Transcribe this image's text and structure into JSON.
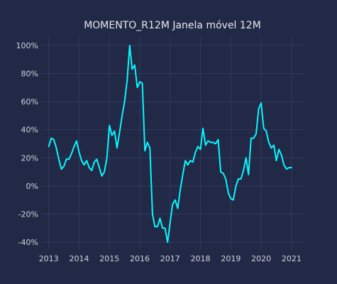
{
  "chart_data": {
    "type": "line",
    "title": "MOMENTO_R12M Janela móvel 12M",
    "xlabel": "",
    "ylabel": "",
    "x_range": [
      2012.75,
      2021.4
    ],
    "ylim": [
      -45,
      107
    ],
    "yticks": [
      -40,
      -20,
      0,
      20,
      40,
      60,
      80,
      100
    ],
    "ytick_labels": [
      "-40%",
      "-20%",
      "0%",
      "20%",
      "40%",
      "60%",
      "80%",
      "100%"
    ],
    "xticks": [
      2013,
      2014,
      2015,
      2016,
      2017,
      2018,
      2019,
      2020,
      2021
    ],
    "xtick_labels": [
      "2013",
      "2014",
      "2015",
      "2016",
      "2017",
      "2018",
      "2019",
      "2020",
      "2021"
    ],
    "grid": true,
    "line_color": "#08F7FE",
    "series": [
      {
        "x": [
          2013.0,
          2013.083,
          2013.167,
          2013.25,
          2013.333,
          2013.417,
          2013.5,
          2013.583,
          2013.667,
          2013.75,
          2013.833,
          2013.917,
          2014.0,
          2014.083,
          2014.167,
          2014.25,
          2014.333,
          2014.417,
          2014.5,
          2014.583,
          2014.667,
          2014.75,
          2014.833,
          2014.917,
          2015.0,
          2015.083,
          2015.167,
          2015.25,
          2015.333,
          2015.417,
          2015.5,
          2015.583,
          2015.667,
          2015.75,
          2015.833,
          2015.917,
          2016.0,
          2016.083,
          2016.167,
          2016.25,
          2016.333,
          2016.417,
          2016.5,
          2016.583,
          2016.667,
          2016.75,
          2016.833,
          2016.917,
          2017.0,
          2017.083,
          2017.167,
          2017.25,
          2017.333,
          2017.417,
          2017.5,
          2017.583,
          2017.667,
          2017.75,
          2017.833,
          2017.917,
          2018.0,
          2018.083,
          2018.167,
          2018.25,
          2018.333,
          2018.417,
          2018.5,
          2018.583,
          2018.667,
          2018.75,
          2018.833,
          2018.917,
          2019.0,
          2019.083,
          2019.167,
          2019.25,
          2019.333,
          2019.417,
          2019.5,
          2019.583,
          2019.667,
          2019.75,
          2019.833,
          2019.917,
          2020.0,
          2020.083,
          2020.167,
          2020.25,
          2020.333,
          2020.417,
          2020.5,
          2020.583,
          2020.667,
          2020.75,
          2020.833,
          2020.917,
          2021.0
        ],
        "y": [
          28,
          34,
          33,
          27,
          19,
          12,
          14,
          19,
          19,
          23,
          28,
          32,
          24,
          18,
          15,
          18,
          13,
          11,
          17,
          19,
          13,
          7,
          10,
          20,
          43,
          36,
          39,
          27,
          38,
          50,
          60,
          75,
          100,
          83,
          86,
          70,
          74,
          73,
          25,
          31,
          27,
          -20,
          -29,
          -29,
          -23,
          -30,
          -30,
          -40,
          -26,
          -13,
          -10,
          -16,
          -3,
          8,
          18,
          15,
          18,
          17,
          24,
          28,
          26,
          41,
          29,
          32,
          31,
          31,
          30,
          33,
          10,
          9,
          5,
          -5,
          -9,
          -10,
          0,
          5,
          5,
          11,
          20,
          8,
          34,
          34,
          37,
          55,
          59,
          41,
          39,
          31,
          27,
          29,
          18,
          26,
          22,
          15,
          12,
          13,
          13
        ]
      }
    ]
  }
}
